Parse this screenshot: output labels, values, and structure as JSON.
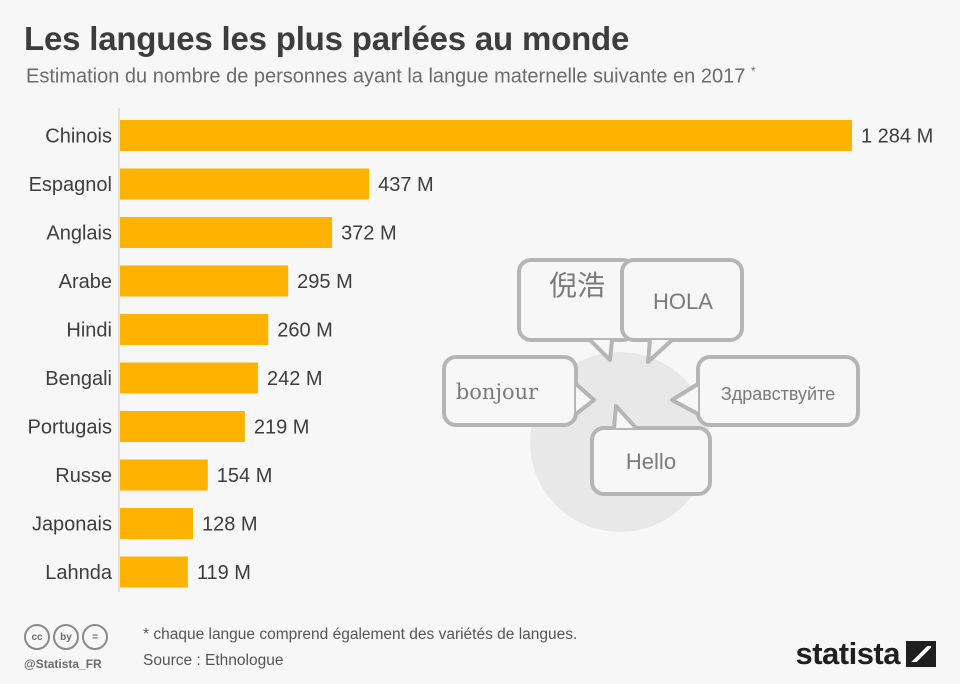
{
  "header": {
    "title": "Les langues les plus parlées au monde",
    "subtitle": "Estimation du nombre de personnes ayant la langue maternelle suivante en 2017",
    "subtitle_mark": "*"
  },
  "chart_data": {
    "type": "bar",
    "orientation": "horizontal",
    "title": "Les langues les plus parlées au monde",
    "categories": [
      "Chinois",
      "Espagnol",
      "Anglais",
      "Arabe",
      "Hindi",
      "Bengali",
      "Portugais",
      "Russe",
      "Japonais",
      "Lahnda"
    ],
    "values": [
      1284,
      437,
      372,
      295,
      260,
      242,
      219,
      154,
      128,
      119
    ],
    "value_labels": [
      "1 284 M",
      "437 M",
      "372 M",
      "295 M",
      "260 M",
      "242 M",
      "219 M",
      "154 M",
      "128 M",
      "119 M"
    ],
    "unit": "M",
    "xlim": [
      0,
      1284
    ],
    "grid": false,
    "bar_color": "#ffb300"
  },
  "illustration": {
    "bubbles": [
      "倪浩",
      "HOLA",
      "bonjour",
      "Здравствуйте",
      "Hello"
    ],
    "stroke_color": "#b5b5b5",
    "disc_color": "#e8e8e8"
  },
  "footer": {
    "note": "* chaque langue comprend également des variétés de langues.",
    "source": "Source : Ethnologue",
    "handle": "@Statista_FR",
    "license_icons": [
      "cc",
      "by",
      "="
    ],
    "brand": "statista"
  }
}
